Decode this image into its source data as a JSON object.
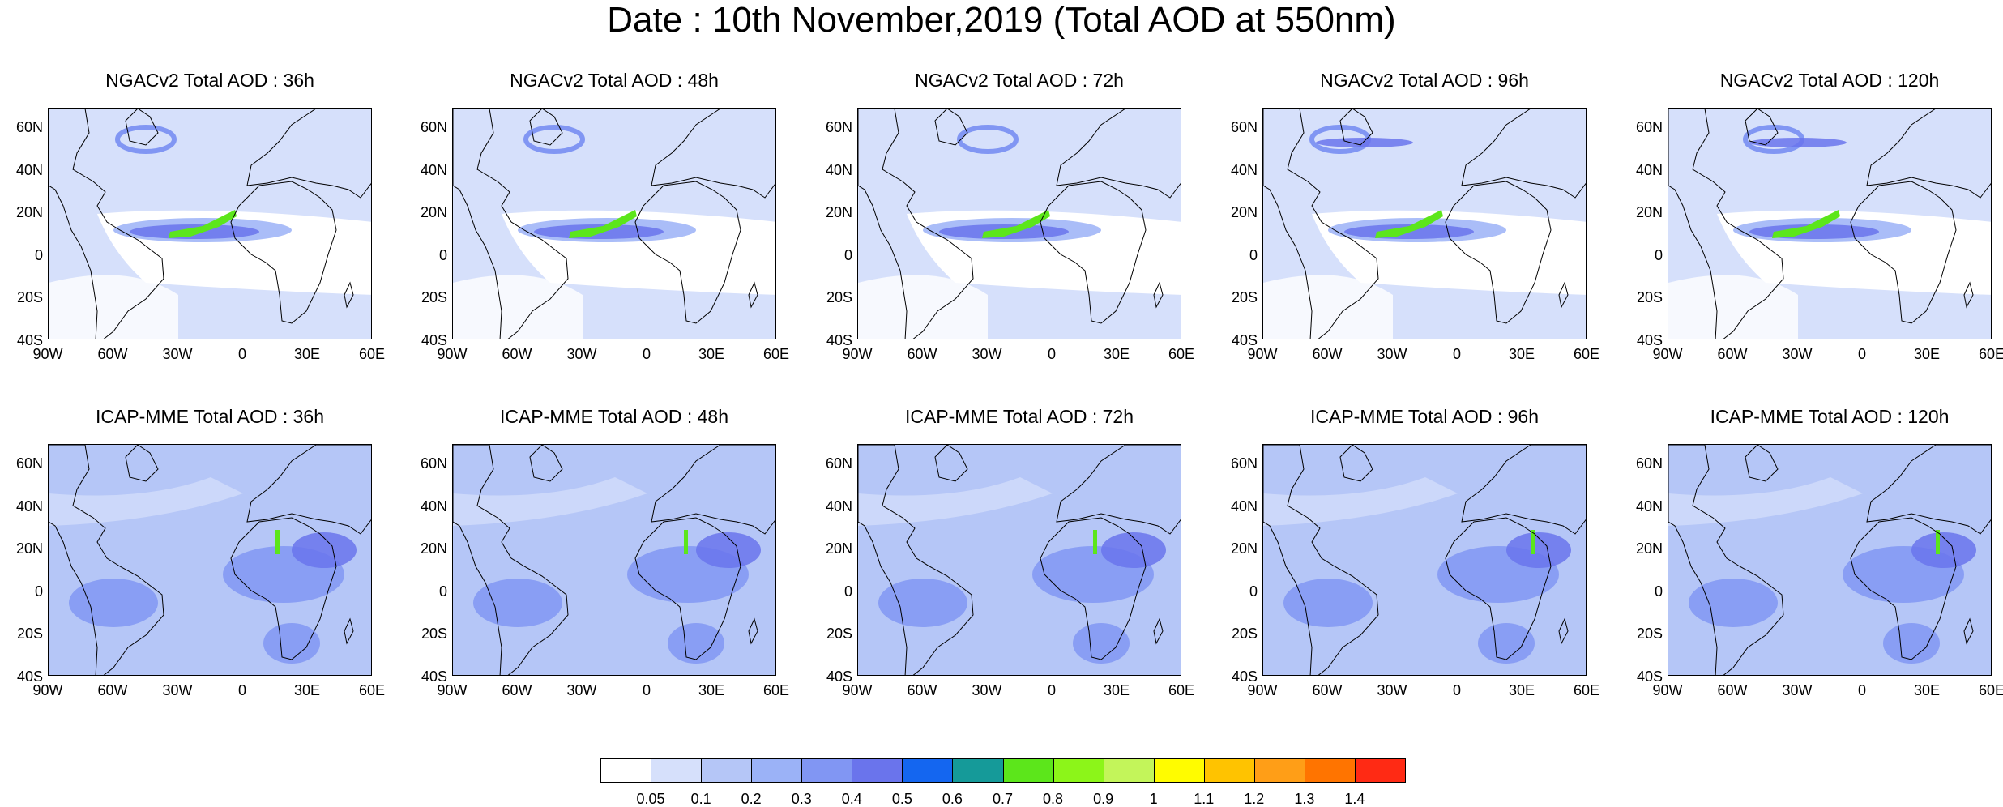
{
  "figure": {
    "title": "Date : 10th November,2019 (Total AOD at 550nm)"
  },
  "axes": {
    "lat_labels": [
      "60N",
      "40N",
      "20N",
      "0",
      "20S",
      "40S"
    ],
    "lon_labels": [
      "90W",
      "60W",
      "30W",
      "0",
      "30E",
      "60E"
    ]
  },
  "panels": [
    {
      "title": "NGACv2 Total AOD : 36h",
      "model": "NGACv2",
      "lead": "36h"
    },
    {
      "title": "NGACv2 Total AOD : 48h",
      "model": "NGACv2",
      "lead": "48h"
    },
    {
      "title": "NGACv2 Total AOD : 72h",
      "model": "NGACv2",
      "lead": "72h"
    },
    {
      "title": "NGACv2 Total AOD : 96h",
      "model": "NGACv2",
      "lead": "96h"
    },
    {
      "title": "NGACv2 Total AOD : 120h",
      "model": "NGACv2",
      "lead": "120h"
    },
    {
      "title": "ICAP-MME Total AOD : 36h",
      "model": "ICAP-MME",
      "lead": "36h"
    },
    {
      "title": "ICAP-MME Total AOD : 48h",
      "model": "ICAP-MME",
      "lead": "48h"
    },
    {
      "title": "ICAP-MME Total AOD : 72h",
      "model": "ICAP-MME",
      "lead": "72h"
    },
    {
      "title": "ICAP-MME Total AOD : 96h",
      "model": "ICAP-MME",
      "lead": "96h"
    },
    {
      "title": "ICAP-MME Total AOD : 120h",
      "model": "ICAP-MME",
      "lead": "120h"
    }
  ],
  "colorbar": {
    "labels": [
      "0.05",
      "0.1",
      "0.2",
      "0.3",
      "0.4",
      "0.5",
      "0.6",
      "0.7",
      "0.8",
      "0.9",
      "1",
      "1.1",
      "1.2",
      "1.3",
      "1.4"
    ],
    "colors": [
      "#ffffff",
      "#d6e0fb",
      "#b5c6f7",
      "#9bb2f7",
      "#8196f3",
      "#6a74ec",
      "#1466f0",
      "#159a99",
      "#5ce61b",
      "#8cf519",
      "#c3f55a",
      "#fffc00",
      "#ffc300",
      "#ff9e17",
      "#ff7400",
      "#ff2a14"
    ]
  }
}
